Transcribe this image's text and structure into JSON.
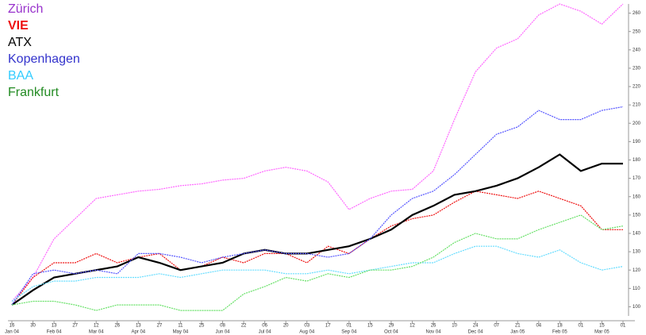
{
  "chart_data": {
    "type": "line",
    "categories": [
      "16",
      "30",
      "13",
      "27",
      "12",
      "26",
      "13",
      "27",
      "11",
      "25",
      "08",
      "22",
      "06",
      "20",
      "03",
      "17",
      "01",
      "15",
      "29",
      "12",
      "26",
      "10",
      "24",
      "07",
      "21",
      "04",
      "18",
      "01",
      "15",
      "01"
    ],
    "category_months": [
      "Jan 04",
      null,
      "Feb 04",
      null,
      "Mar 04",
      null,
      "Apr 04",
      null,
      "May 04",
      null,
      "Jun 04",
      null,
      "Jul 04",
      null,
      "Aug 04",
      null,
      "Sep 04",
      null,
      "Oct 04",
      null,
      "Nov 04",
      null,
      "Dec 04",
      null,
      "Jan 05",
      null,
      "Feb 05",
      null,
      "Mar 05",
      null
    ],
    "ylim": [
      95,
      265
    ],
    "yticks": [
      100,
      110,
      120,
      130,
      140,
      150,
      160,
      170,
      180,
      190,
      200,
      210,
      220,
      230,
      240,
      250,
      260
    ],
    "series": [
      {
        "name": "Zürich",
        "color": "#ff66ff",
        "label_color": "#9933cc",
        "values": [
          103,
          116,
          137,
          148,
          159,
          161,
          163,
          164,
          166,
          167,
          169,
          170,
          174,
          176,
          174,
          168,
          153,
          159,
          163,
          164,
          174,
          202,
          228,
          241,
          246,
          259,
          265,
          261,
          254,
          265
        ]
      },
      {
        "name": "VIE",
        "color": "#ee1111",
        "label_color": "#ee1111",
        "bold": true,
        "values": [
          101,
          116,
          124,
          124,
          129,
          124,
          127,
          129,
          120,
          122,
          127,
          124,
          129,
          129,
          124,
          133,
          129,
          137,
          144,
          148,
          150,
          157,
          163,
          161,
          159,
          163,
          159,
          155,
          142,
          142
        ]
      },
      {
        "name": "ATX",
        "color": "#000000",
        "label_color": "#000000",
        "values": [
          101,
          109,
          116,
          118,
          120,
          122,
          127,
          124,
          120,
          122,
          124,
          129,
          131,
          129,
          129,
          131,
          133,
          137,
          142,
          150,
          155,
          161,
          163,
          166,
          170,
          176,
          183,
          174,
          178,
          178
        ]
      },
      {
        "name": "Kopenhagen",
        "color": "#5555ff",
        "label_color": "#3333cc",
        "values": [
          101,
          118,
          120,
          118,
          120,
          118,
          129,
          129,
          127,
          124,
          127,
          129,
          131,
          129,
          129,
          127,
          129,
          137,
          150,
          159,
          163,
          172,
          183,
          194,
          198,
          207,
          202,
          202,
          207,
          209
        ]
      },
      {
        "name": "BAA",
        "color": "#66ddff",
        "label_color": "#33ccff",
        "values": [
          103,
          111,
          114,
          114,
          116,
          116,
          116,
          118,
          116,
          118,
          120,
          120,
          120,
          118,
          118,
          120,
          118,
          120,
          122,
          124,
          124,
          129,
          133,
          133,
          129,
          127,
          131,
          124,
          120,
          122
        ]
      },
      {
        "name": "Frankfurt",
        "color": "#66e066",
        "label_color": "#228b22",
        "values": [
          101,
          103,
          103,
          101,
          98,
          101,
          101,
          101,
          98,
          98,
          98,
          107,
          111,
          116,
          114,
          118,
          116,
          120,
          120,
          122,
          127,
          135,
          140,
          137,
          137,
          142,
          146,
          150,
          142,
          144
        ]
      }
    ]
  }
}
